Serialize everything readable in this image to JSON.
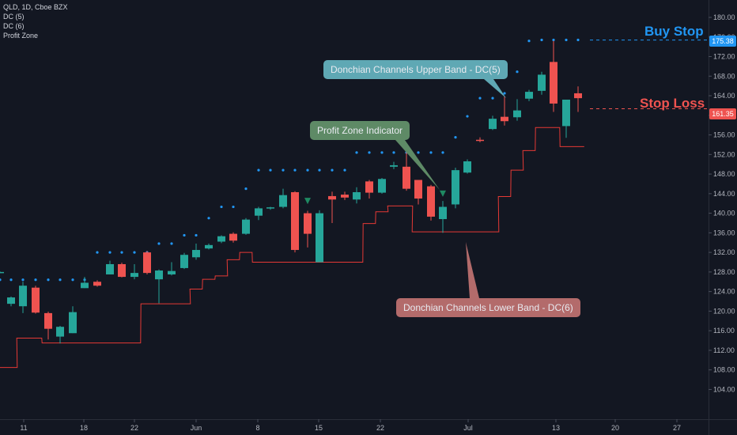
{
  "legend": {
    "symbol": "QLD, 1D, Cboe BZX",
    "indicators": [
      "DC (5)",
      "DC (6)",
      "Profit Zone"
    ]
  },
  "labels": {
    "buy_stop": "Buy Stop",
    "stop_loss": "Stop Loss",
    "upper_band_callout": "Donchian Channels Upper Band - DC(5)",
    "profit_zone_callout": "Profit Zone Indicator",
    "lower_band_callout": "Donchian Channels Lower Band - DC(6)",
    "buy_stop_price": "175.38",
    "stop_loss_price": "161.35"
  },
  "colors": {
    "background": "#131722",
    "up": "#26a69a",
    "down": "#ef5350",
    "upper_band": "#2196f3",
    "lower_band": "#e53935",
    "buy_stop": "#2196f3",
    "stop_loss": "#ef5350",
    "upper_callout": "#5fa8b4",
    "profit_callout": "#5e8a66",
    "lower_callout": "#b36b6b",
    "profit_marker": "#1f8a62"
  },
  "chart_data": {
    "type": "candlestick",
    "y_axis": {
      "ticks": [
        104,
        108,
        112,
        116,
        120,
        124,
        128,
        132,
        136,
        140,
        144,
        148,
        152,
        156,
        160,
        164,
        168,
        172,
        176,
        180
      ],
      "range": [
        102,
        182
      ]
    },
    "x_axis": {
      "ticks": [
        "11",
        "18",
        "22",
        "Jun",
        "8",
        "15",
        "22",
        "Jul",
        "13",
        "20",
        "27"
      ]
    },
    "candles": [
      {
        "date": "Apr 29",
        "o": 127.9,
        "h": 128.1,
        "l": 127.8,
        "c": 128.0
      },
      {
        "date": "May 10",
        "o": 121.5,
        "h": 123.0,
        "l": 121.0,
        "c": 122.8
      },
      {
        "date": "May 11",
        "o": 121.0,
        "h": 126.0,
        "l": 119.6,
        "c": 125.2
      },
      {
        "date": "May 12",
        "o": 124.8,
        "h": 125.2,
        "l": 119.5,
        "c": 119.7
      },
      {
        "date": "May 13",
        "o": 119.6,
        "h": 119.9,
        "l": 114.2,
        "c": 116.4
      },
      {
        "date": "May 14",
        "o": 114.8,
        "h": 117.0,
        "l": 113.4,
        "c": 116.8
      },
      {
        "date": "May 17",
        "o": 115.5,
        "h": 121.0,
        "l": 115.5,
        "c": 119.8
      },
      {
        "date": "May 18",
        "o": 124.7,
        "h": 127.0,
        "l": 124.7,
        "c": 125.8
      },
      {
        "date": "May 19",
        "o": 126.0,
        "h": 126.3,
        "l": 125.0,
        "c": 125.2
      },
      {
        "date": "May 20",
        "o": 127.5,
        "h": 130.3,
        "l": 127.5,
        "c": 129.6
      },
      {
        "date": "May 21",
        "o": 129.6,
        "h": 129.9,
        "l": 126.9,
        "c": 127.0
      },
      {
        "date": "May 24",
        "o": 127.0,
        "h": 129.6,
        "l": 126.5,
        "c": 127.8
      },
      {
        "date": "May 25",
        "o": 132.0,
        "h": 132.3,
        "l": 127.5,
        "c": 127.8
      },
      {
        "date": "May 26",
        "o": 126.5,
        "h": 128.5,
        "l": 121.6,
        "c": 128.3
      },
      {
        "date": "May 27",
        "o": 127.5,
        "h": 130.0,
        "l": 127.3,
        "c": 128.2
      },
      {
        "date": "May 28",
        "o": 128.8,
        "h": 131.9,
        "l": 128.6,
        "c": 131.5
      },
      {
        "date": "Jun 1",
        "o": 131.0,
        "h": 133.8,
        "l": 130.5,
        "c": 132.5
      },
      {
        "date": "Jun 2",
        "o": 132.8,
        "h": 133.8,
        "l": 132.6,
        "c": 133.5
      },
      {
        "date": "Jun 3",
        "o": 134.2,
        "h": 135.5,
        "l": 133.9,
        "c": 135.3
      },
      {
        "date": "Jun 4",
        "o": 135.8,
        "h": 136.1,
        "l": 134.0,
        "c": 134.4
      },
      {
        "date": "Jun 7",
        "o": 135.8,
        "h": 139.0,
        "l": 135.6,
        "c": 138.7
      },
      {
        "date": "Jun 8",
        "o": 139.5,
        "h": 141.3,
        "l": 138.6,
        "c": 141.0
      },
      {
        "date": "Jun 9",
        "o": 141.0,
        "h": 141.3,
        "l": 140.7,
        "c": 141.2
      },
      {
        "date": "Jun 10",
        "o": 141.3,
        "h": 145.0,
        "l": 141.0,
        "c": 143.7
      },
      {
        "date": "Jun 11",
        "o": 144.3,
        "h": 144.5,
        "l": 132.0,
        "c": 132.5
      },
      {
        "date": "Jun 14",
        "o": 140.0,
        "h": 140.5,
        "l": 133.0,
        "c": 135.8
      },
      {
        "date": "Jun 15",
        "o": 130.0,
        "h": 140.6,
        "l": 130.0,
        "c": 140.0
      },
      {
        "date": "Jun 16",
        "o": 143.5,
        "h": 144.4,
        "l": 138.0,
        "c": 142.8
      },
      {
        "date": "Jun 17",
        "o": 143.8,
        "h": 144.4,
        "l": 142.7,
        "c": 143.2
      },
      {
        "date": "Jun 18",
        "o": 142.8,
        "h": 145.3,
        "l": 142.0,
        "c": 144.3
      },
      {
        "date": "Jun 21",
        "o": 146.5,
        "h": 146.8,
        "l": 143.0,
        "c": 144.2
      },
      {
        "date": "Jun 22",
        "o": 144.2,
        "h": 147.2,
        "l": 144.0,
        "c": 147.0
      },
      {
        "date": "Jun 23",
        "o": 149.5,
        "h": 150.5,
        "l": 149.0,
        "c": 149.8
      },
      {
        "date": "Jun 24",
        "o": 149.5,
        "h": 152.5,
        "l": 144.6,
        "c": 145.0
      },
      {
        "date": "Jun 25",
        "o": 146.8,
        "h": 146.8,
        "l": 141.8,
        "c": 143.0
      },
      {
        "date": "Jun 28",
        "o": 145.5,
        "h": 145.8,
        "l": 138.5,
        "c": 139.3
      },
      {
        "date": "Jun 29",
        "o": 138.8,
        "h": 142.5,
        "l": 136.0,
        "c": 141.3
      },
      {
        "date": "Jun 30",
        "o": 141.8,
        "h": 149.3,
        "l": 141.0,
        "c": 148.8
      },
      {
        "date": "Jul 1",
        "o": 148.3,
        "h": 151.0,
        "l": 148.1,
        "c": 150.6
      },
      {
        "date": "Jul 2",
        "o": 155.0,
        "h": 155.5,
        "l": 154.5,
        "c": 154.8
      },
      {
        "date": "Jul 6",
        "o": 157.2,
        "h": 159.9,
        "l": 157.0,
        "c": 159.3
      },
      {
        "date": "Jul 7",
        "o": 159.7,
        "h": 163.9,
        "l": 157.9,
        "c": 158.8
      },
      {
        "date": "Jul 8",
        "o": 159.6,
        "h": 163.3,
        "l": 158.9,
        "c": 161.0
      },
      {
        "date": "Jul 9",
        "o": 163.4,
        "h": 165.2,
        "l": 162.9,
        "c": 164.8
      },
      {
        "date": "Jul 12",
        "o": 165.0,
        "h": 168.9,
        "l": 164.2,
        "c": 168.3
      },
      {
        "date": "Jul 13",
        "o": 170.9,
        "h": 175.2,
        "l": 160.7,
        "c": 162.4
      },
      {
        "date": "Jul 14",
        "o": 157.8,
        "h": 163.0,
        "l": 155.4,
        "c": 163.2
      },
      {
        "date": "Jul 15",
        "o": 164.5,
        "h": 165.9,
        "l": 160.7,
        "c": 163.5
      }
    ],
    "upper_band_dc5": [
      126.4,
      126.4,
      126.4,
      126.4,
      126.4,
      126.4,
      126.4,
      126.4,
      132.0,
      132.0,
      132.0,
      132.0,
      132.0,
      133.8,
      133.8,
      135.5,
      135.5,
      139.0,
      141.3,
      141.3,
      145.0,
      148.8,
      148.8,
      148.8,
      148.8,
      148.8,
      148.8,
      148.8,
      148.8,
      152.4,
      152.4,
      152.4,
      152.4,
      152.4,
      152.4,
      152.4,
      152.4,
      155.5,
      159.8,
      163.5,
      163.5,
      164.5,
      168.9,
      175.2,
      175.4,
      175.4,
      175.4,
      175.4
    ],
    "lower_band_dc6": [
      108.5,
      108.5,
      114.5,
      114.5,
      113.5,
      113.5,
      113.5,
      113.5,
      113.5,
      113.5,
      113.5,
      113.5,
      121.5,
      121.5,
      121.5,
      121.5,
      124.5,
      126.5,
      127.2,
      130.5,
      132.0,
      130.0,
      130.0,
      130.0,
      130.0,
      130.0,
      130.0,
      130.0,
      130.0,
      130.0,
      137.9,
      140.3,
      141.5,
      141.5,
      136.2,
      136.2,
      136.2,
      136.2,
      136.2,
      136.2,
      136.2,
      143.4,
      148.8,
      152.8,
      157.5,
      157.5,
      153.6,
      153.6
    ],
    "profit_zone_markers": [
      {
        "date": "Jun 14",
        "price": 142.5
      },
      {
        "date": "Jun 29",
        "price": 144.0
      }
    ],
    "buy_stop": 175.38,
    "stop_loss": 161.35
  }
}
